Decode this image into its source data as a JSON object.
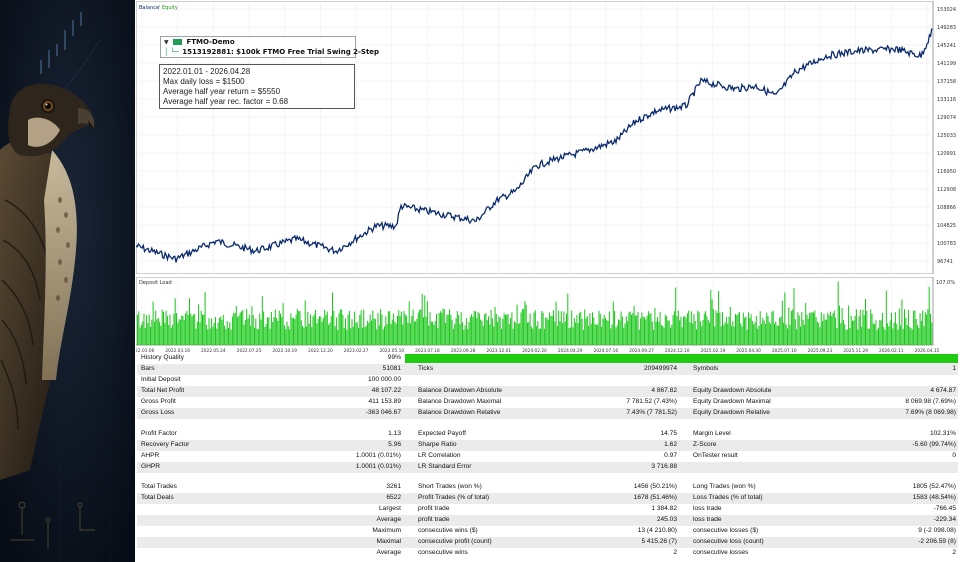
{
  "chart": {
    "legend_balance": "Balance",
    "legend_sep": " / ",
    "legend_equity": "Equity",
    "legend_load": "Deposit Load",
    "y_ticks": [
      "153024",
      "149283",
      "145241",
      "141199",
      "137158",
      "133116",
      "129074",
      "125033",
      "120991",
      "116950",
      "112908",
      "108866",
      "104825",
      "100783",
      "96741"
    ],
    "load_ticks": [
      "107.0%"
    ],
    "x_ticks": [
      "2022.01.06",
      "2022.03.16",
      "2022.05.24",
      "2022.07.25",
      "2022.10.19",
      "2022.12.20",
      "2023.02.27",
      "2023.05.10",
      "2023.07.18",
      "2023.09.28",
      "2023.12.01",
      "2024.02.20",
      "2024.04.29",
      "2024.07.16",
      "2024.09.27",
      "2024.12.10",
      "2025.02.19",
      "2025.04.30",
      "2025.07.10",
      "2025.09.23",
      "2025.11.29",
      "2026.02.11",
      "2026.04.15"
    ],
    "colors": {
      "balance": "#0b2a6e",
      "equity": "#1a9c1a",
      "load": "#18c818",
      "grid": "#d8d8d8"
    }
  },
  "tree": {
    "account": "FTMO-Demo",
    "item": "1513192881: $100k FTMO Free Trial Swing 2-Step"
  },
  "info": {
    "period": "2022.01.01 - 2026.04.28",
    "daily_loss": "Max daily loss = $1500",
    "avg_return": "Average half year return = $5550",
    "avg_factor": "Average half year rec. factor = 0.68"
  },
  "stats": {
    "history_quality": {
      "label": "History Quality",
      "value": "99%"
    },
    "bars": {
      "label": "Bars",
      "value": "51081"
    },
    "ticks": {
      "label": "Ticks",
      "value": "209499974"
    },
    "symbols": {
      "label": "Symbols",
      "value": "1"
    },
    "initial_deposit": {
      "label": "Initial Deposit",
      "value": "100 000.00"
    },
    "total_net_profit": {
      "label": "Total Net Profit",
      "value": "48 107.22"
    },
    "bal_dd_abs": {
      "label": "Balance Drawdown Absolute",
      "value": "4 867.82"
    },
    "eq_dd_abs": {
      "label": "Equity Drawdown Absolute",
      "value": "4 674.87"
    },
    "gross_profit": {
      "label": "Gross Profit",
      "value": "411 153.89"
    },
    "bal_dd_max": {
      "label": "Balance Drawdown Maximal",
      "value": "7 781.52 (7.43%)"
    },
    "eq_dd_max": {
      "label": "Equity Drawdown Maximal",
      "value": "8 069.98 (7.69%)"
    },
    "gross_loss": {
      "label": "Gross Loss",
      "value": "-363 046.67"
    },
    "bal_dd_rel": {
      "label": "Balance Drawdown Relative",
      "value": "7.43% (7 781.52)"
    },
    "eq_dd_rel": {
      "label": "Equity Drawdown Relative",
      "value": "7.69% (8 069.98)"
    },
    "profit_factor": {
      "label": "Profit Factor",
      "value": "1.13"
    },
    "expected_payoff": {
      "label": "Expected Payoff",
      "value": "14.75"
    },
    "margin_level": {
      "label": "Margin Level",
      "value": "102.31%"
    },
    "recovery_factor": {
      "label": "Recovery Factor",
      "value": "5.96"
    },
    "sharpe": {
      "label": "Sharpe Ratio",
      "value": "1.62"
    },
    "z_score": {
      "label": "Z-Score",
      "value": "-5.60 (99.74%)"
    },
    "ahpr": {
      "label": "AHPR",
      "value": "1.0001 (0.01%)"
    },
    "lr_corr": {
      "label": "LR Correlation",
      "value": "0.97"
    },
    "ontester": {
      "label": "OnTester result",
      "value": "0"
    },
    "ghpr": {
      "label": "GHPR",
      "value": "1.0001 (0.01%)"
    },
    "lr_err": {
      "label": "LR Standard Error",
      "value": "3 716.88"
    },
    "total_trades": {
      "label": "Total Trades",
      "value": "3261"
    },
    "short_trades": {
      "label": "Short Trades (won %)",
      "value": "1456 (50.21%)"
    },
    "long_trades": {
      "label": "Long Trades (won %)",
      "value": "1805 (52.47%)"
    },
    "total_deals": {
      "label": "Total Deals",
      "value": "6522"
    },
    "profit_trades": {
      "label": "Profit Trades (% of total)",
      "value": "1678 (51.46%)"
    },
    "loss_trades": {
      "label": "Loss Trades (% of total)",
      "value": "1583 (48.54%)"
    },
    "largest": {
      "label": "Largest",
      "pt_label": "profit trade",
      "pt_value": "1 384.82",
      "lt_label": "loss trade",
      "lt_value": "-766.45"
    },
    "average": {
      "label": "Average",
      "pt_label": "profit trade",
      "pt_value": "245.03",
      "lt_label": "loss trade",
      "lt_value": "-229.34"
    },
    "maximum": {
      "label": "Maximum",
      "pt_label": "consecutive wins ($)",
      "pt_value": "13 (4 210.80)",
      "lt_label": "consecutive losses ($)",
      "lt_value": "9 (-2 098.08)"
    },
    "maximal": {
      "label": "Maximal",
      "pt_label": "consecutive profit (count)",
      "pt_value": "5 415.26 (7)",
      "lt_label": "consecutive loss (count)",
      "lt_value": "-2 206.59 (8)"
    },
    "average2": {
      "label": "Average",
      "pt_label": "consecutive wins",
      "pt_value": "2",
      "lt_label": "consecutive losses",
      "lt_value": "2"
    }
  }
}
